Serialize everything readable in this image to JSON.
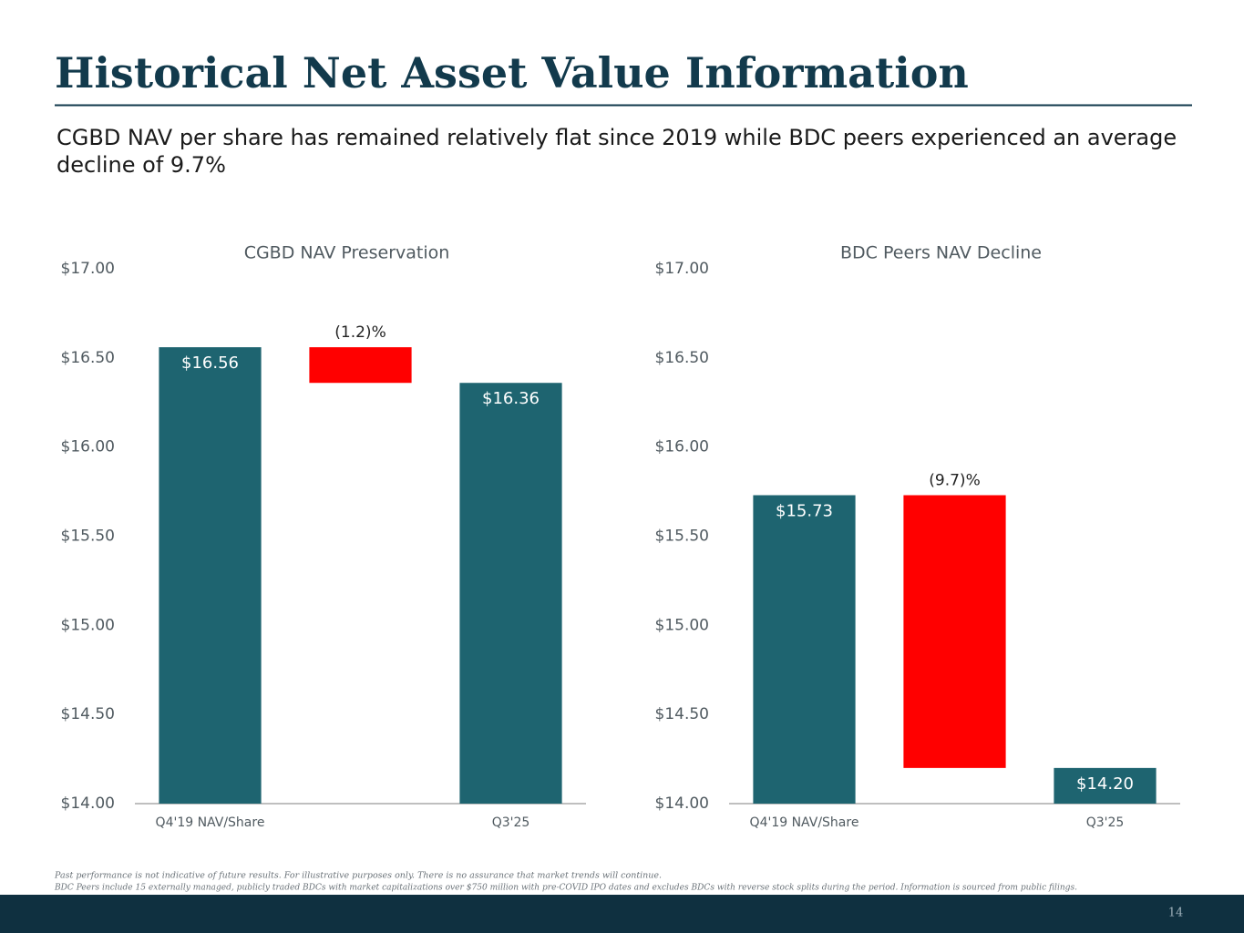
{
  "slide": {
    "title": "Historical Net Asset Value Information",
    "subtitle": "CGBD NAV per share has remained relatively flat since 2019 while BDC peers experienced an average decline of 9.7%",
    "footnotes": [
      "Past performance is not indicative of future results. For illustrative purposes only. There is no assurance that market trends will continue.",
      "BDC Peers include 15 externally managed, publicly traded BDCs with market capitalizations over $750 million with pre-COVID IPO dates and excludes BDCs with reverse stock splits during the period. Information is sourced from public filings."
    ],
    "page": "14"
  },
  "chart_data": [
    {
      "type": "waterfall",
      "title": "CGBD NAV Preservation",
      "categories": [
        "Q4'19 NAV/Share",
        null,
        "Q3'25"
      ],
      "values": [
        16.56,
        -0.2,
        16.36
      ],
      "value_labels": [
        "$16.56",
        null,
        "$16.36"
      ],
      "annotation": "(1.2)%",
      "color": "#1e6470",
      "decrease_color": "#ff0000",
      "ylim": [
        14,
        17
      ],
      "yticks": [
        {
          "value": 14,
          "label": "$14.00"
        },
        {
          "value": 14.5,
          "label": "$14.50"
        },
        {
          "value": 15,
          "label": "$15.00"
        },
        {
          "value": 15.5,
          "label": "$15.50"
        },
        {
          "value": 16,
          "label": "$16.00"
        },
        {
          "value": 16.5,
          "label": "$16.50"
        },
        {
          "value": 17,
          "label": "$17.00"
        }
      ]
    },
    {
      "type": "waterfall",
      "title": "BDC Peers NAV Decline",
      "categories": [
        "Q4'19 NAV/Share",
        null,
        "Q3'25"
      ],
      "values": [
        15.73,
        -1.53,
        14.2
      ],
      "value_labels": [
        "$15.73",
        null,
        "$14.20"
      ],
      "annotation": "(9.7)%",
      "color": "#1e6470",
      "decrease_color": "#ff0000",
      "ylim": [
        14,
        17
      ],
      "yticks": [
        {
          "value": 14,
          "label": "$14.00"
        },
        {
          "value": 14.5,
          "label": "$14.50"
        },
        {
          "value": 15,
          "label": "$15.00"
        },
        {
          "value": 15.5,
          "label": "$15.50"
        },
        {
          "value": 16,
          "label": "$16.00"
        },
        {
          "value": 16.5,
          "label": "$16.50"
        },
        {
          "value": 17,
          "label": "$17.00"
        }
      ]
    }
  ]
}
